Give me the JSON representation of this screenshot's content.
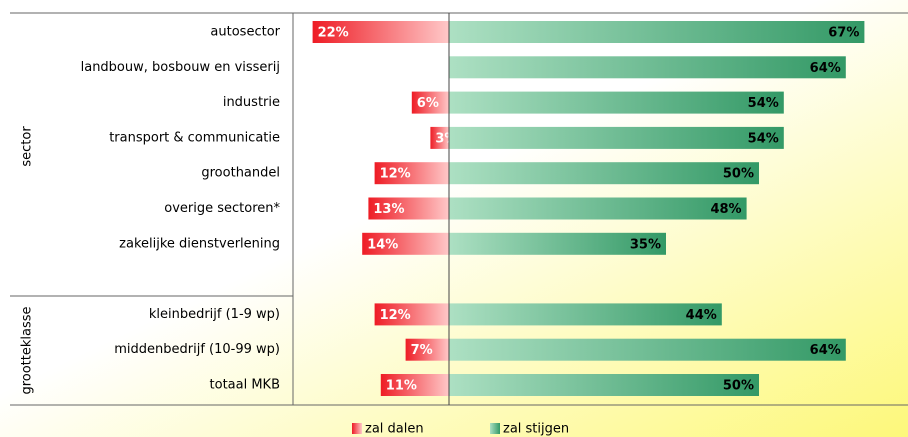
{
  "chart_data": {
    "type": "diverging-bar",
    "groups": [
      "sector",
      "grootteklasse"
    ],
    "categories": [
      "autosector",
      "landbouw, bosbouw en visserij",
      "industrie",
      "transport & communicatie",
      "groothandel",
      "overige sectoren*",
      "zakelijke dienstverlening",
      null,
      "kleinbedrijf (1-9 wp)",
      "middenbedrijf (10-99 wp)",
      "totaal MKB"
    ],
    "series": [
      {
        "name": "zal dalen",
        "color": "#ee1c25",
        "direction": "left",
        "values": [
          22,
          null,
          6,
          3,
          12,
          13,
          14,
          null,
          12,
          7,
          11
        ],
        "value_labels": [
          "22%",
          null,
          "6%",
          "3%",
          "12%",
          "13%",
          "14%",
          null,
          "12%",
          "7%",
          "11%"
        ]
      },
      {
        "name": "zal stijgen",
        "color": "#339966",
        "direction": "right",
        "values": [
          67,
          64,
          54,
          54,
          50,
          48,
          35,
          null,
          44,
          64,
          50
        ],
        "value_labels": [
          "67%",
          "64%",
          "54%",
          "54%",
          "50%",
          "48%",
          "35%",
          null,
          "44%",
          "64%",
          "50%"
        ]
      }
    ]
  }
}
